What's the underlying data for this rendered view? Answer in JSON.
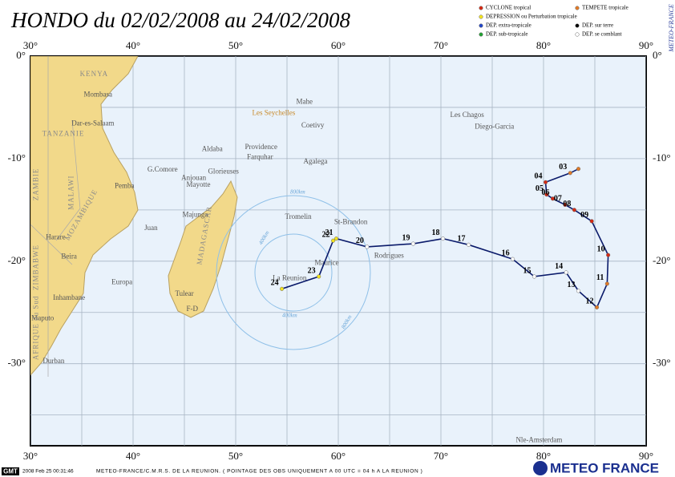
{
  "map": {
    "title": "HONDO du 02/02/2008 au 24/02/2008",
    "credit_vertical": "METEO-FRANCE",
    "lon_range": [
      30,
      90
    ],
    "lat_range": [
      0,
      -38
    ],
    "lon_ticks": [
      {
        "value": 30,
        "label": "30°"
      },
      {
        "value": 40,
        "label": "40°"
      },
      {
        "value": 50,
        "label": "50°"
      },
      {
        "value": 60,
        "label": "60°"
      },
      {
        "value": 70,
        "label": "70°"
      },
      {
        "value": 80,
        "label": "80°"
      },
      {
        "value": 90,
        "label": "90°"
      }
    ],
    "lat_ticks": [
      {
        "value": 0,
        "label": "0°"
      },
      {
        "value": -10,
        "label": "-10°"
      },
      {
        "value": -20,
        "label": "-20°"
      },
      {
        "value": -30,
        "label": "-30°"
      }
    ],
    "legend": [
      {
        "name": "CYCLONE tropical",
        "color": "#d42a14"
      },
      {
        "name": "TEMPETE tropicale",
        "color": "#e07a28"
      },
      {
        "name": "DEPRESSION ou Perturbation tropicale",
        "color": "#f2e21e"
      },
      {
        "name": "DEP. extra-tropicale",
        "color": "#2448c8"
      },
      {
        "name": "DEP. sur terre",
        "color": "#000000"
      },
      {
        "name": "DEP. sub-tropicale",
        "color": "#22a032"
      },
      {
        "name": "DEP. se comblant",
        "color": "#ffffff"
      }
    ],
    "track": [
      {
        "label": null,
        "lon": 83.4,
        "lat": -11.0,
        "color": "#e07a28"
      },
      {
        "label": "03",
        "lon": 82.6,
        "lat": -11.4,
        "color": "#e07a28"
      },
      {
        "label": "04",
        "lon": 80.2,
        "lat": -12.3,
        "color": "#d42a14"
      },
      {
        "label": "05",
        "lon": 80.3,
        "lat": -13.5,
        "color": "#d42a14"
      },
      {
        "label": "06",
        "lon": 80.9,
        "lat": -13.9,
        "color": "#d42a14"
      },
      {
        "label": "07",
        "lon": 82.1,
        "lat": -14.5,
        "color": "#d42a14"
      },
      {
        "label": "08",
        "lon": 83.0,
        "lat": -15.0,
        "color": "#d42a14"
      },
      {
        "label": "09",
        "lon": 84.7,
        "lat": -16.1,
        "color": "#d42a14"
      },
      {
        "label": "10",
        "lon": 86.3,
        "lat": -19.4,
        "color": "#d42a14"
      },
      {
        "label": "11",
        "lon": 86.2,
        "lat": -22.2,
        "color": "#e07a28"
      },
      {
        "label": "12",
        "lon": 85.2,
        "lat": -24.5,
        "color": "#e07a28"
      },
      {
        "label": "13",
        "lon": 83.4,
        "lat": -22.9,
        "color": "#ffffff"
      },
      {
        "label": "14",
        "lon": 82.2,
        "lat": -21.1,
        "color": "#ffffff"
      },
      {
        "label": "15",
        "lon": 79.1,
        "lat": -21.5,
        "color": "#ffffff"
      },
      {
        "label": "16",
        "lon": 77.0,
        "lat": -19.8,
        "color": "#ffffff"
      },
      {
        "label": "17",
        "lon": 72.7,
        "lat": -18.4,
        "color": "#ffffff"
      },
      {
        "label": "18",
        "lon": 70.2,
        "lat": -17.8,
        "color": "#ffffff"
      },
      {
        "label": "19",
        "lon": 67.3,
        "lat": -18.3,
        "color": "#ffffff"
      },
      {
        "label": "20",
        "lon": 62.8,
        "lat": -18.6,
        "color": "#ffffff"
      },
      {
        "label": "21",
        "lon": 59.8,
        "lat": -17.8,
        "color": "#f2e21e"
      },
      {
        "label": "22",
        "lon": 59.5,
        "lat": -18.0,
        "color": "#f2e21e"
      },
      {
        "label": "23",
        "lon": 58.1,
        "lat": -21.5,
        "color": "#f2e21e"
      },
      {
        "label": "24",
        "lon": 54.5,
        "lat": -22.7,
        "color": "#f2e21e"
      }
    ],
    "places": [
      {
        "name": "Mombasa",
        "lon": 35.2,
        "lat": -3.8
      },
      {
        "name": "Dar-es-Salaam",
        "lon": 34.0,
        "lat": -6.6
      },
      {
        "name": "Pemba",
        "lon": 38.2,
        "lat": -12.7
      },
      {
        "name": "Harare",
        "lon": 31.5,
        "lat": -17.7
      },
      {
        "name": "Beira",
        "lon": 33.0,
        "lat": -19.6
      },
      {
        "name": "Inhambane",
        "lon": 32.2,
        "lat": -23.6
      },
      {
        "name": "Maputo",
        "lon": 30.1,
        "lat": -25.6
      },
      {
        "name": "Durban",
        "lon": 31.2,
        "lat": -29.8
      },
      {
        "name": "Juan",
        "lon": 41.1,
        "lat": -16.8
      },
      {
        "name": "Europa",
        "lon": 37.9,
        "lat": -22.1
      },
      {
        "name": "Tulear",
        "lon": 44.1,
        "lat": -23.2
      },
      {
        "name": "F-D",
        "lon": 45.2,
        "lat": -24.7
      },
      {
        "name": "Majunga",
        "lon": 44.8,
        "lat": -15.5
      },
      {
        "name": "Anjouan",
        "lon": 44.7,
        "lat": -11.9
      },
      {
        "name": "Mayotte",
        "lon": 45.2,
        "lat": -12.6
      },
      {
        "name": "G.Comore",
        "lon": 41.4,
        "lat": -11.1
      },
      {
        "name": "Glorieuses",
        "lon": 47.3,
        "lat": -11.3
      },
      {
        "name": "Aldaba",
        "lon": 46.7,
        "lat": -9.1
      },
      {
        "name": "Providence",
        "lon": 50.9,
        "lat": -8.9
      },
      {
        "name": "Farquhar",
        "lon": 51.1,
        "lat": -9.9
      },
      {
        "name": "Agalega",
        "lon": 56.6,
        "lat": -10.3
      },
      {
        "name": "Coetivy",
        "lon": 56.4,
        "lat": -6.8
      },
      {
        "name": "Mahe",
        "lon": 55.9,
        "lat": -4.5
      },
      {
        "name": "Les Seychelles",
        "lon": 51.6,
        "lat": -5.6
      },
      {
        "name": "Les Chagos",
        "lon": 70.9,
        "lat": -5.8
      },
      {
        "name": "Diego-Garcia",
        "lon": 73.3,
        "lat": -6.9
      },
      {
        "name": "Tromelin",
        "lon": 54.8,
        "lat": -15.7
      },
      {
        "name": "St-Brandon",
        "lon": 59.6,
        "lat": -16.2
      },
      {
        "name": "Rodrigues",
        "lon": 63.5,
        "lat": -19.5
      },
      {
        "name": "Maurice",
        "lon": 57.7,
        "lat": -20.2
      },
      {
        "name": "La Reunion",
        "lon": 53.6,
        "lat": -21.7
      },
      {
        "name": "Nle-Amsterdam",
        "lon": 77.3,
        "lat": -37.5
      }
    ],
    "countries": [
      {
        "name": "KENYA",
        "lon": 36.2,
        "lat": -1.8
      },
      {
        "name": "TANZANIE",
        "lon": 33.2,
        "lat": -7.6
      },
      {
        "name": "MOZAMBIQUE",
        "lon": 35.0,
        "lat": -15.5
      },
      {
        "name": "MADAGASCAR",
        "lon": 47.0,
        "lat": -17.5
      },
      {
        "name": "ZAMBIE",
        "lon": 30.6,
        "lat": -12.5
      },
      {
        "name": "MALAWI",
        "lon": 34.0,
        "lat": -13.3
      },
      {
        "name": "ZIMBABWE",
        "lon": 30.6,
        "lat": -20.6
      },
      {
        "name": "AFRIQUE du Sud",
        "lon": 30.6,
        "lat": -26.5
      }
    ],
    "circle_labels": [
      "800km",
      "400km",
      "400km",
      "800km"
    ],
    "footer": {
      "logo": "GMT",
      "timestamp": "2008 Feb 25 00:31:46",
      "source": "METEO-FRANCE/C.M.R.S. DE LA REUNION. ( POINTAGE DES OBS UNIQUEMENT A 00 UTC = 04 h A LA REUNION )",
      "brand": "METEO FRANCE"
    }
  }
}
